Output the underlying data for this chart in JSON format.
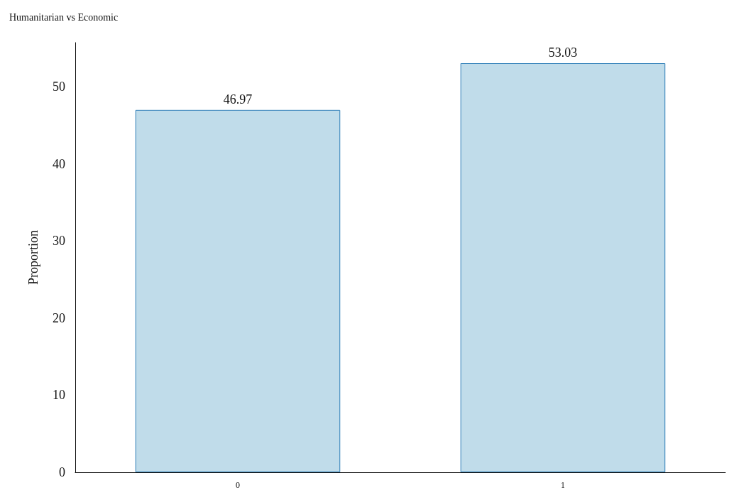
{
  "chart_data": {
    "type": "bar",
    "title": "Humanitarian vs Economic",
    "ylabel": "Proportion",
    "categories": [
      "0",
      "1"
    ],
    "values": [
      46.97,
      53.03
    ],
    "color": "#c0dcea",
    "ylim": [
      0,
      55.7
    ],
    "yticks": [
      0,
      10,
      20,
      30,
      40,
      50
    ],
    "data_labels": true,
    "grid": false
  }
}
